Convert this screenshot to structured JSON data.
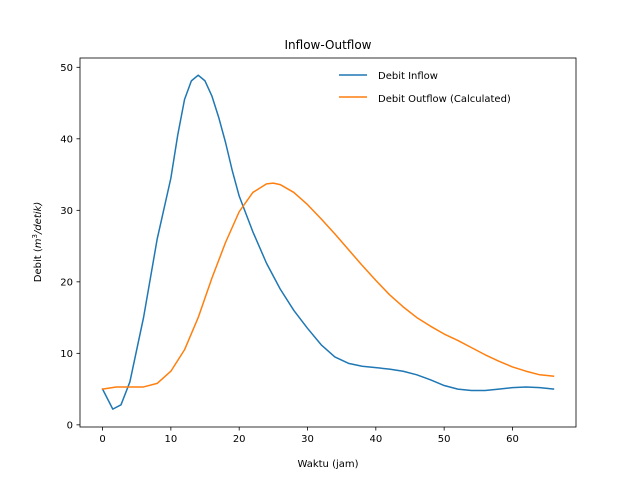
{
  "chart_data": {
    "type": "line",
    "title": "Inflow-Outflow",
    "xlabel": "Waktu (jam)",
    "ylabel_prefix": "Debit (",
    "ylabel_m": "m",
    "ylabel_exp": "3",
    "ylabel_suffix": "/detik)",
    "xlim": [
      -3.3,
      69.3
    ],
    "ylim": [
      -0.3,
      51.3
    ],
    "xticks": [
      0,
      10,
      20,
      30,
      40,
      50,
      60
    ],
    "yticks": [
      0,
      10,
      20,
      30,
      40,
      50
    ],
    "grid": false,
    "legend_position": "top-right",
    "series": [
      {
        "name": "Debit Inflow",
        "color": "#1f77b4",
        "x": [
          0,
          1.5,
          2.7,
          4,
          6,
          8,
          10,
          11,
          12,
          13,
          14,
          15,
          16,
          17,
          18,
          19,
          20,
          22,
          24,
          26,
          28,
          30,
          32,
          34,
          36,
          38,
          40,
          42,
          44,
          46,
          48,
          50,
          52,
          54,
          56,
          58,
          60,
          62,
          64,
          66
        ],
        "y": [
          5.0,
          2.2,
          2.8,
          6.0,
          15.0,
          26.0,
          34.5,
          40.5,
          45.5,
          48.1,
          48.9,
          48.1,
          46.0,
          43.0,
          39.5,
          35.5,
          32.0,
          27.0,
          22.6,
          19.0,
          16.0,
          13.5,
          11.2,
          9.5,
          8.6,
          8.2,
          8.0,
          7.8,
          7.5,
          7.0,
          6.3,
          5.5,
          5.0,
          4.8,
          4.8,
          5.0,
          5.2,
          5.3,
          5.2,
          5.0
        ]
      },
      {
        "name": "Debit Outflow (Calculated)",
        "color": "#ff7f0e",
        "x": [
          0,
          2,
          4,
          6,
          8,
          10,
          12,
          14,
          16,
          18,
          20,
          22,
          24,
          25,
          26,
          28,
          30,
          32,
          34,
          36,
          38,
          40,
          42,
          44,
          46,
          48,
          50,
          52,
          54,
          56,
          58,
          60,
          62,
          64,
          66
        ],
        "y": [
          5.0,
          5.3,
          5.3,
          5.3,
          5.8,
          7.5,
          10.5,
          15.0,
          20.5,
          25.5,
          29.8,
          32.5,
          33.7,
          33.8,
          33.6,
          32.5,
          30.8,
          28.8,
          26.7,
          24.5,
          22.3,
          20.2,
          18.2,
          16.5,
          15.0,
          13.8,
          12.7,
          11.8,
          10.8,
          9.8,
          8.9,
          8.1,
          7.5,
          7.0,
          6.8
        ]
      }
    ]
  }
}
